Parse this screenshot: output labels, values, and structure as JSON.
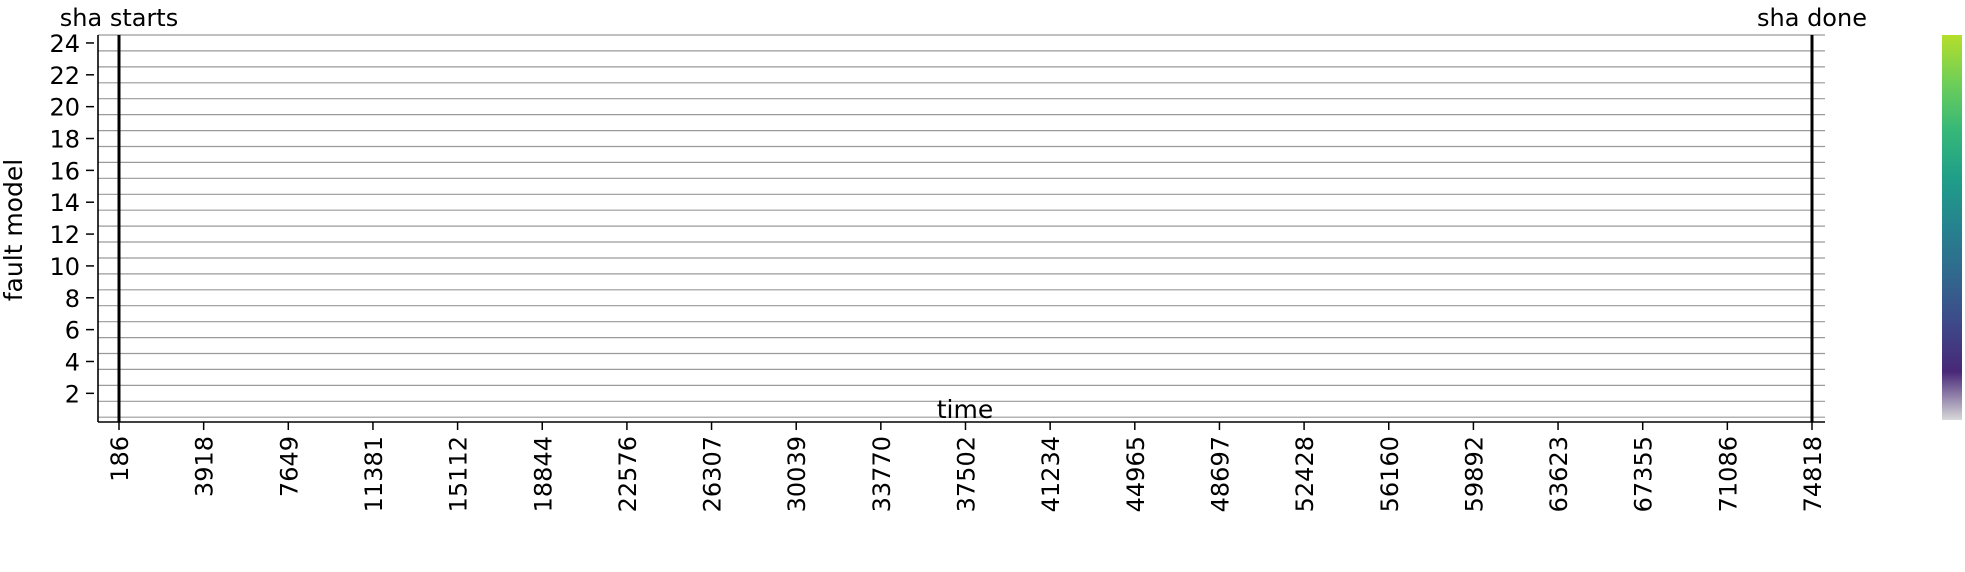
{
  "chart_data": {
    "type": "heatmap",
    "title": "",
    "xlabel": "time",
    "ylabel": "fault model",
    "x_ticks": [
      "186",
      "3918",
      "7649",
      "11381",
      "15112",
      "18844",
      "22576",
      "26307",
      "30039",
      "33770",
      "37502",
      "41234",
      "44965",
      "48697",
      "52428",
      "56160",
      "59892",
      "63623",
      "67355",
      "71086",
      "74818"
    ],
    "y_ticks": [
      "2",
      "4",
      "6",
      "8",
      "10",
      "12",
      "14",
      "16",
      "18",
      "20",
      "22",
      "24"
    ],
    "y_range": [
      1,
      24
    ],
    "grid": true,
    "annotations": [
      {
        "text": "sha starts",
        "x": 186
      },
      {
        "text": "sha done",
        "x": 74818
      }
    ],
    "colorbar": {
      "stops": [
        "#d9d9d9",
        "#482878",
        "#3e4989",
        "#31688e",
        "#26828e",
        "#1f9e89",
        "#35b779",
        "#6ece58",
        "#b5de2b"
      ],
      "tick_labels": []
    },
    "values": []
  }
}
